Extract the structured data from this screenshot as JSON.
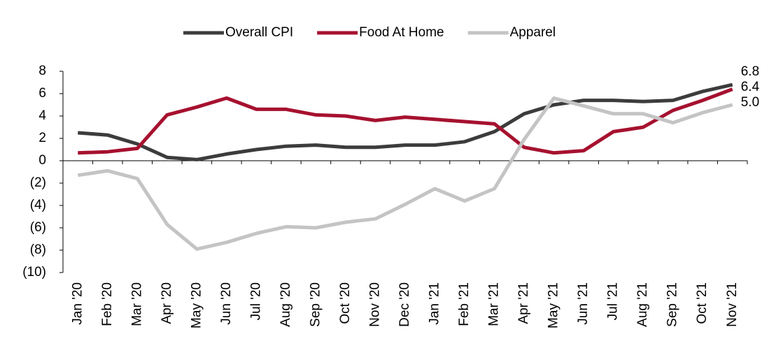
{
  "chart_data": {
    "type": "line",
    "categories": [
      "Jan '20",
      "Feb '20",
      "Mar '20",
      "Apr '20",
      "May '20",
      "Jun '20",
      "Jul '20",
      "Aug '20",
      "Sep '20",
      "Oct '20",
      "Nov '20",
      "Dec '20",
      "Jan '21",
      "Feb '21",
      "Mar '21",
      "Apr '21",
      "May '21",
      "Jun '21",
      "Jul '21",
      "Aug '21",
      "Sep '21",
      "Oct '21",
      "Nov '21"
    ],
    "series": [
      {
        "name": "Overall CPI",
        "color": "#3c3c3c",
        "values": [
          2.5,
          2.3,
          1.5,
          0.3,
          0.1,
          0.6,
          1.0,
          1.3,
          1.4,
          1.2,
          1.2,
          1.4,
          1.4,
          1.7,
          2.6,
          4.2,
          5.0,
          5.4,
          5.4,
          5.3,
          5.4,
          6.2,
          6.8
        ],
        "value_labels": [
          null,
          null,
          null,
          null,
          null,
          null,
          null,
          null,
          null,
          null,
          null,
          null,
          null,
          null,
          null,
          null,
          null,
          null,
          null,
          null,
          null,
          null,
          "6.8"
        ]
      },
      {
        "name": "Food At Home",
        "color": "#a6112f",
        "values": [
          0.7,
          0.8,
          1.1,
          4.1,
          4.8,
          5.6,
          4.6,
          4.6,
          4.1,
          4.0,
          3.6,
          3.9,
          3.7,
          3.5,
          3.3,
          1.2,
          0.7,
          0.9,
          2.6,
          3.0,
          4.5,
          5.4,
          6.4
        ],
        "value_labels": [
          null,
          null,
          null,
          null,
          null,
          null,
          null,
          null,
          null,
          null,
          null,
          null,
          null,
          null,
          null,
          null,
          null,
          null,
          null,
          null,
          null,
          null,
          "6.4"
        ]
      },
      {
        "name": "Apparel",
        "color": "#c4c4c4",
        "values": [
          -1.3,
          -0.9,
          -1.6,
          -5.7,
          -7.9,
          -7.3,
          -6.5,
          -5.9,
          -6.0,
          -5.5,
          -5.2,
          -3.9,
          -2.5,
          -3.6,
          -2.5,
          1.9,
          5.6,
          4.9,
          4.2,
          4.2,
          3.4,
          4.3,
          5.0
        ],
        "value_labels": [
          null,
          null,
          null,
          null,
          null,
          null,
          null,
          null,
          null,
          null,
          null,
          null,
          null,
          null,
          null,
          null,
          null,
          null,
          null,
          null,
          null,
          null,
          "5.0"
        ]
      }
    ],
    "ylim": [
      -10,
      8
    ],
    "yticks": [
      8,
      6,
      4,
      2,
      0,
      {
        "value": -2,
        "label": "(2)"
      },
      {
        "value": -4,
        "label": "(4)"
      },
      {
        "value": -6,
        "label": "(6)"
      },
      {
        "value": -8,
        "label": "(8)"
      },
      {
        "value": -10,
        "label": "(10)"
      }
    ],
    "legend": "top",
    "grid": false
  }
}
